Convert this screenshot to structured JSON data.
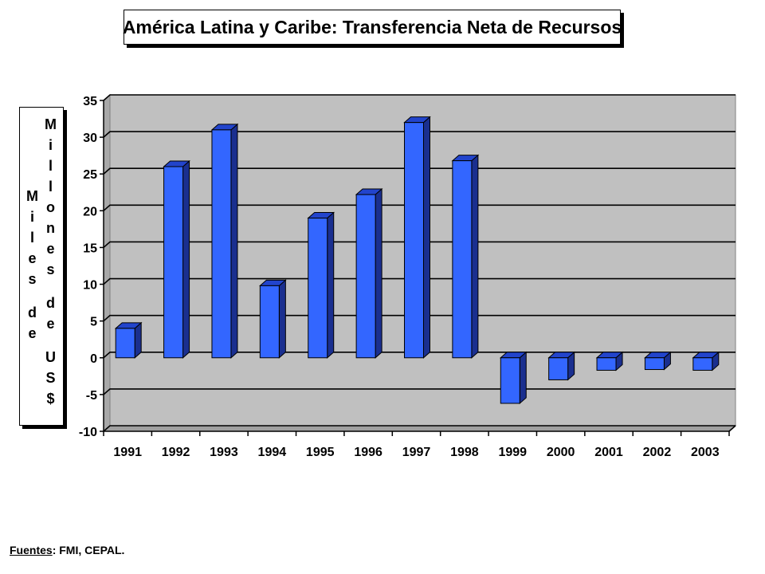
{
  "title": "América Latina y Caribe: Transferencia Neta de Recursos",
  "ylabel_lines": [
    "Miles de",
    "Millones de US$"
  ],
  "source": {
    "label": "Fuentes",
    "text": ":  FMI, CEPAL."
  },
  "colors": {
    "bar": "#3366ff",
    "plot_bg": "#c0c0c0",
    "grid": "#000000"
  },
  "chart_data": {
    "type": "bar",
    "title": "América Latina y Caribe: Transferencia Neta de Recursos",
    "ylabel": "Miles de Millones de US$",
    "xlabel": "",
    "categories": [
      "1991",
      "1992",
      "1993",
      "1994",
      "1995",
      "1996",
      "1997",
      "1998",
      "1999",
      "2000",
      "2001",
      "2002",
      "2003"
    ],
    "values": [
      4,
      26,
      31,
      9.8,
      19,
      22.2,
      32,
      26.8,
      -6.2,
      -3,
      -1.7,
      -1.6,
      -1.7
    ],
    "ylim": [
      -10,
      35
    ],
    "yticks": [
      35,
      30,
      25,
      20,
      15,
      10,
      5,
      0,
      -5,
      -10
    ],
    "grid": true,
    "legend": "none"
  }
}
